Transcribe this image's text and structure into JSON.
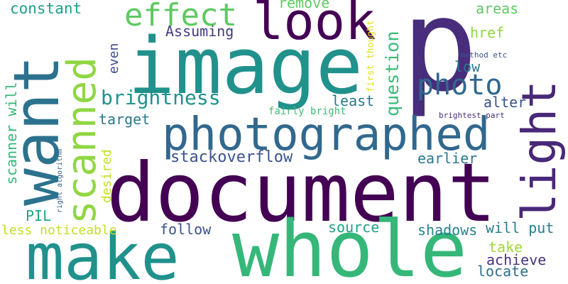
{
  "words": [
    {
      "text": "document",
      "color": "#440154"
    },
    {
      "text": "p",
      "color": "#472d7b"
    },
    {
      "text": "image",
      "color": "#21918c"
    },
    {
      "text": "whole",
      "color": "#35b779"
    },
    {
      "text": "make",
      "color": "#21918c"
    },
    {
      "text": "want",
      "color": "#2c728e"
    },
    {
      "text": "photographed",
      "color": "#31688e"
    },
    {
      "text": "look",
      "color": "#440154"
    },
    {
      "text": "scanned",
      "color": "#90d743"
    },
    {
      "text": "light",
      "color": "#482878"
    },
    {
      "text": "effect",
      "color": "#5ec962"
    },
    {
      "text": "photo",
      "color": "#31688e"
    },
    {
      "text": "brightness",
      "color": "#21918c"
    },
    {
      "text": "question",
      "color": "#3aba76"
    },
    {
      "text": "stackoverflow",
      "color": "#3b528b"
    },
    {
      "text": "constant",
      "color": "#1f9e89"
    },
    {
      "text": "remove",
      "color": "#5ec962"
    },
    {
      "text": "areas",
      "color": "#5ec962"
    },
    {
      "text": "href",
      "color": "#90d743"
    },
    {
      "text": "Assuming",
      "color": "#443983"
    },
    {
      "text": "even",
      "color": "#3e4989"
    },
    {
      "text": "low",
      "color": "#2a788e"
    },
    {
      "text": "least",
      "color": "#2a788e"
    },
    {
      "text": "target",
      "color": "#2a788e"
    },
    {
      "text": "alter",
      "color": "#3b528b"
    },
    {
      "text": "earlier",
      "color": "#2a788e"
    },
    {
      "text": "scanner will",
      "color": "#35b779"
    },
    {
      "text": "desired",
      "color": "#c2df23"
    },
    {
      "text": "PIL",
      "color": "#21a585"
    },
    {
      "text": "less noticeable",
      "color": "#c2df23"
    },
    {
      "text": "follow",
      "color": "#3b528b"
    },
    {
      "text": "source",
      "color": "#1fa187"
    },
    {
      "text": "shadows",
      "color": "#26828e"
    },
    {
      "text": "will put",
      "color": "#287c8e"
    },
    {
      "text": "take",
      "color": "#a0da39"
    },
    {
      "text": "achieve",
      "color": "#46337e"
    },
    {
      "text": "locate",
      "color": "#2e6e8e"
    },
    {
      "text": "fairly bright",
      "color": "#3fbc73"
    },
    {
      "text": "first thought",
      "color": "#dde318"
    },
    {
      "text": "method etc",
      "color": "#3b528b"
    },
    {
      "text": "brightest part",
      "color": "#472d7b"
    },
    {
      "text": "right algorithm",
      "color": "#34618d"
    }
  ]
}
